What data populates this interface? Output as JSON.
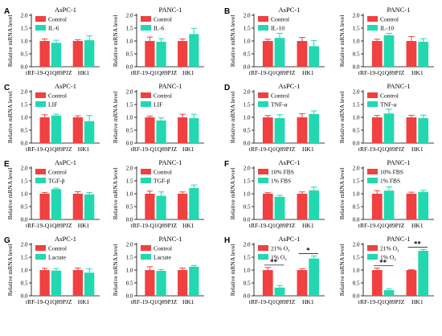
{
  "colors": {
    "control": "#f04040",
    "treat": "#22d8b0",
    "error": "#c8c8c8"
  },
  "panel_letters": [
    "A",
    "B",
    "C",
    "D",
    "E",
    "F",
    "G",
    "H"
  ],
  "chart_data": [
    {
      "type": "bar",
      "title": "AsPC-1",
      "categories": [
        "tRF-19-Q1Q89PJZ",
        "HK1"
      ],
      "ylabel": "Relative mRNA level",
      "ylim": [
        0,
        2.0
      ],
      "yticks": [
        "0.0",
        "0.5",
        "1.0",
        "1.5",
        "2.0"
      ],
      "series": [
        {
          "name": "Control",
          "values": [
            1.0,
            1.0
          ],
          "errors": [
            0.08,
            0.05
          ]
        },
        {
          "name": "IL-6",
          "values": [
            0.93,
            1.03
          ],
          "errors": [
            0.1,
            0.17
          ]
        }
      ],
      "annotations": []
    },
    {
      "type": "bar",
      "title": "PANC-1",
      "categories": [
        "tRF-19-Q1Q89PJZ",
        "HK1"
      ],
      "ylabel": "Relative mRNA level",
      "ylim": [
        0,
        2.0
      ],
      "yticks": [
        "0.0",
        "0.5",
        "1.0",
        "1.5",
        "2.0"
      ],
      "series": [
        {
          "name": "Control",
          "values": [
            1.0,
            1.0
          ],
          "errors": [
            0.15,
            0.08
          ]
        },
        {
          "name": "IL-6",
          "values": [
            0.97,
            1.27
          ],
          "errors": [
            0.12,
            0.22
          ]
        }
      ],
      "annotations": []
    },
    {
      "type": "bar",
      "title": "AsPC-1",
      "categories": [
        "tRF-19-Q1Q89PJZ",
        "HK1"
      ],
      "ylabel": "Relative mRNA level",
      "ylim": [
        0,
        2.0
      ],
      "yticks": [
        "0.0",
        "0.5",
        "1.0",
        "1.5",
        "2.0"
      ],
      "series": [
        {
          "name": "Control",
          "values": [
            1.0,
            1.0
          ],
          "errors": [
            0.07,
            0.14
          ]
        },
        {
          "name": "IL-10",
          "values": [
            1.12,
            0.8
          ],
          "errors": [
            0.18,
            0.22
          ]
        }
      ],
      "annotations": []
    },
    {
      "type": "bar",
      "title": "PANC-1",
      "categories": [
        "tRF-19-Q1Q89PJZ",
        "HK1"
      ],
      "ylabel": "Relative mRNA level",
      "ylim": [
        0,
        2.0
      ],
      "yticks": [
        "0.0",
        "0.5",
        "1.0",
        "1.5",
        "2.0"
      ],
      "series": [
        {
          "name": "Control",
          "values": [
            1.0,
            1.0
          ],
          "errors": [
            0.07,
            0.17
          ]
        },
        {
          "name": "IL-10",
          "values": [
            1.22,
            0.97
          ],
          "errors": [
            0.08,
            0.12
          ]
        }
      ],
      "annotations": []
    },
    {
      "type": "bar",
      "title": "AsPC-1",
      "categories": [
        "tRF-19-Q1Q89PJZ",
        "HK1"
      ],
      "ylabel": "Relative mRNA level",
      "ylim": [
        0,
        2.0
      ],
      "yticks": [
        "0.0",
        "0.5",
        "1.0",
        "1.5",
        "2.0"
      ],
      "series": [
        {
          "name": "Control",
          "values": [
            1.0,
            1.0
          ],
          "errors": [
            0.1,
            0.06
          ]
        },
        {
          "name": "LIF",
          "values": [
            1.07,
            0.85
          ],
          "errors": [
            0.05,
            0.22
          ]
        }
      ],
      "annotations": []
    },
    {
      "type": "bar",
      "title": "PANC-1",
      "categories": [
        "tRF-19-Q1Q89PJZ",
        "HK1"
      ],
      "ylabel": "Relative mRNA level",
      "ylim": [
        0,
        2.0
      ],
      "yticks": [
        "0.0",
        "0.5",
        "1.0",
        "1.5",
        "2.0"
      ],
      "series": [
        {
          "name": "Control",
          "values": [
            1.0,
            1.0
          ],
          "errors": [
            0.05,
            0.12
          ]
        },
        {
          "name": "LIF",
          "values": [
            0.88,
            0.97
          ],
          "errors": [
            0.1,
            0.15
          ]
        }
      ],
      "annotations": []
    },
    {
      "type": "bar",
      "title": "AsPC-1",
      "categories": [
        "tRF-19-Q1Q89PJZ",
        "HK1"
      ],
      "ylabel": "Relative mRNA level",
      "ylim": [
        0,
        2.0
      ],
      "yticks": [
        "0.0",
        "0.5",
        "1.0",
        "1.5",
        "2.0"
      ],
      "series": [
        {
          "name": "Control",
          "values": [
            1.0,
            1.0
          ],
          "errors": [
            0.07,
            0.14
          ]
        },
        {
          "name": "TNF-α",
          "values": [
            0.97,
            1.13
          ],
          "errors": [
            0.13,
            0.12
          ]
        }
      ],
      "annotations": []
    },
    {
      "type": "bar",
      "title": "PANC-1",
      "categories": [
        "tRF-19-Q1Q89PJZ",
        "HK1"
      ],
      "ylabel": "Relative mRNA level",
      "ylim": [
        0,
        2.0
      ],
      "yticks": [
        "0.0",
        "0.5",
        "1.0",
        "1.5",
        "2.0"
      ],
      "series": [
        {
          "name": "Control",
          "values": [
            1.0,
            1.0
          ],
          "errors": [
            0.07,
            0.08
          ]
        },
        {
          "name": "TNF-α",
          "values": [
            1.15,
            0.97
          ],
          "errors": [
            0.17,
            0.12
          ]
        }
      ],
      "annotations": []
    },
    {
      "type": "bar",
      "title": "AsPC-1",
      "categories": [
        "tRF-19-Q1Q89PJZ",
        "HK1"
      ],
      "ylabel": "Relative mRNA level",
      "ylim": [
        0,
        2.0
      ],
      "yticks": [
        "0.0",
        "0.5",
        "1.0",
        "1.5",
        "2.0"
      ],
      "series": [
        {
          "name": "Control",
          "values": [
            1.0,
            1.0
          ],
          "errors": [
            0.05,
            0.08
          ]
        },
        {
          "name": "TGF-β",
          "values": [
            1.18,
            0.97
          ],
          "errors": [
            0.04,
            0.08
          ]
        }
      ],
      "annotations": []
    },
    {
      "type": "bar",
      "title": "PANC-1",
      "categories": [
        "tRF-19-Q1Q89PJZ",
        "HK1"
      ],
      "ylabel": "Relative mRNA level",
      "ylim": [
        0,
        2.0
      ],
      "yticks": [
        "0.0",
        "0.5",
        "1.0",
        "1.5",
        "2.0"
      ],
      "series": [
        {
          "name": "Control",
          "values": [
            1.0,
            1.0
          ],
          "errors": [
            0.1,
            0.07
          ]
        },
        {
          "name": "TGF-β",
          "values": [
            0.92,
            1.22
          ],
          "errors": [
            0.15,
            0.12
          ]
        }
      ],
      "annotations": []
    },
    {
      "type": "bar",
      "title": "AsPC-1",
      "categories": [
        "tRF-19-Q1Q89PJZ",
        "HK1"
      ],
      "ylabel": "Relative mRNA level",
      "ylim": [
        0,
        2.0
      ],
      "yticks": [
        "0.0",
        "0.5",
        "1.0",
        "1.5",
        "2.0"
      ],
      "series": [
        {
          "name": "10% FBS",
          "values": [
            1.0,
            1.0
          ],
          "errors": [
            0.04,
            0.07
          ]
        },
        {
          "name": "1% FBS",
          "values": [
            0.88,
            1.13
          ],
          "errors": [
            0.06,
            0.13
          ]
        }
      ],
      "annotations": []
    },
    {
      "type": "bar",
      "title": "PANC-1",
      "categories": [
        "tRF-19-Q1Q89PJZ",
        "HK1"
      ],
      "ylabel": "Relative mRNA level",
      "ylim": [
        0,
        2.0
      ],
      "yticks": [
        "0.0",
        "0.5",
        "1.0",
        "1.5",
        "2.0"
      ],
      "series": [
        {
          "name": "10% FBS",
          "values": [
            1.0,
            1.0
          ],
          "errors": [
            0.12,
            0.06
          ]
        },
        {
          "name": "1% FBS",
          "values": [
            1.12,
            1.07
          ],
          "errors": [
            0.15,
            0.06
          ]
        }
      ],
      "annotations": []
    },
    {
      "type": "bar",
      "title": "AsPC-1",
      "categories": [
        "tRF-19-Q1Q89PJZ",
        "HK1"
      ],
      "ylabel": "Relative mRNA level",
      "ylim": [
        0,
        2.0
      ],
      "yticks": [
        "0.0",
        "0.5",
        "1.0",
        "1.5",
        "2.0"
      ],
      "series": [
        {
          "name": "Control",
          "values": [
            1.0,
            1.0
          ],
          "errors": [
            0.07,
            0.08
          ]
        },
        {
          "name": "Lactate",
          "values": [
            0.98,
            0.9
          ],
          "errors": [
            0.08,
            0.15
          ]
        }
      ],
      "annotations": []
    },
    {
      "type": "bar",
      "title": "PANC-1",
      "categories": [
        "tRF-19-Q1Q89PJZ",
        "HK1"
      ],
      "ylabel": "Relative mRNA level",
      "ylim": [
        0,
        2.0
      ],
      "yticks": [
        "0.0",
        "0.5",
        "1.0",
        "1.5",
        "2.0"
      ],
      "series": [
        {
          "name": "Control",
          "values": [
            1.0,
            1.0
          ],
          "errors": [
            0.13,
            0.08
          ]
        },
        {
          "name": "Lactate",
          "values": [
            0.97,
            1.13
          ],
          "errors": [
            0.05,
            0.05
          ]
        }
      ],
      "annotations": []
    },
    {
      "type": "bar",
      "title": "AsPC-1",
      "categories": [
        "tRF-19-Q1Q89PJZ",
        "HK1"
      ],
      "ylabel": "Relative mRNA level",
      "ylim": [
        0,
        2.0
      ],
      "yticks": [
        "0.0",
        "0.5",
        "1.0",
        "1.5",
        "2.0"
      ],
      "series": [
        {
          "name": "21% O₂",
          "values": [
            1.0,
            1.0
          ],
          "errors": [
            0.1,
            0.05
          ]
        },
        {
          "name": "1% O₂",
          "values": [
            0.32,
            1.45
          ],
          "errors": [
            0.08,
            0.1
          ]
        }
      ],
      "annotations": [
        {
          "category": 0,
          "label": "**"
        },
        {
          "category": 1,
          "label": "*"
        }
      ]
    },
    {
      "type": "bar",
      "title": "PANC-1",
      "categories": [
        "tRF-19-Q1Q89PJZ",
        "HK1"
      ],
      "ylabel": "Relative mRNA level",
      "ylim": [
        0,
        2.0
      ],
      "yticks": [
        "0.0",
        "0.5",
        "1.0",
        "1.5",
        "2.0"
      ],
      "series": [
        {
          "name": "21% O₂",
          "values": [
            1.0,
            1.0
          ],
          "errors": [
            0.08,
            0.02
          ]
        },
        {
          "name": "1% O₂",
          "values": [
            0.22,
            1.75
          ],
          "errors": [
            0.05,
            0.05
          ]
        }
      ],
      "annotations": [
        {
          "category": 0,
          "label": "**"
        },
        {
          "category": 1,
          "label": "**"
        }
      ]
    }
  ]
}
